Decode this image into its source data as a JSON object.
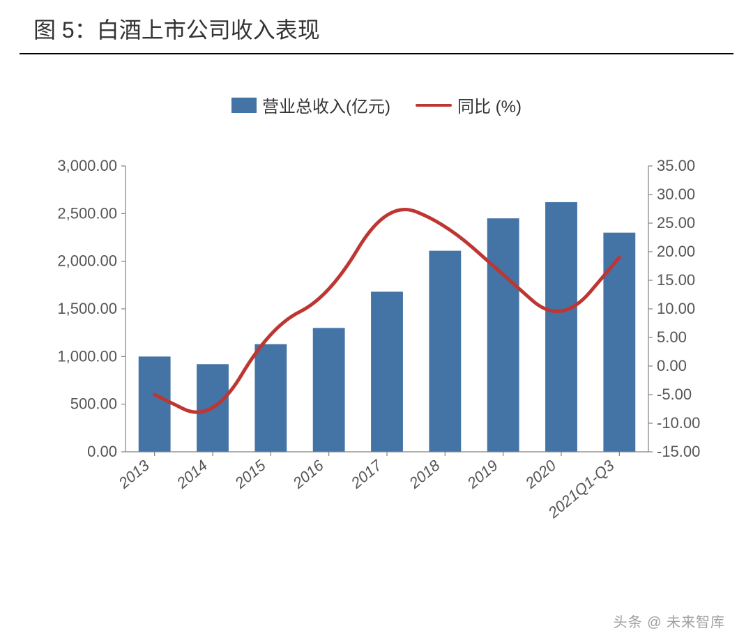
{
  "title": "图 5：白酒上市公司收入表现",
  "legend": {
    "bar_label": "营业总收入(亿元)",
    "line_label": "同比 (%)"
  },
  "chart": {
    "type": "bar+line",
    "categories": [
      "2013",
      "2014",
      "2015",
      "2016",
      "2017",
      "2018",
      "2019",
      "2020",
      "2021Q1-Q3"
    ],
    "bar_values": [
      1000,
      920,
      1130,
      1300,
      1680,
      2110,
      2450,
      2620,
      2300
    ],
    "line_values": [
      -5,
      -10,
      7,
      12,
      29,
      25,
      16,
      7,
      19
    ],
    "left_axis": {
      "min": 0,
      "max": 3000,
      "step": 500,
      "ticks": [
        "0.00",
        "500.00",
        "1,000.00",
        "1,500.00",
        "2,000.00",
        "2,500.00",
        "3,000.00"
      ]
    },
    "right_axis": {
      "min": -15,
      "max": 35,
      "step": 5,
      "ticks": [
        "-15.00",
        "-10.00",
        "-5.00",
        "0.00",
        "5.00",
        "10.00",
        "15.00",
        "20.00",
        "25.00",
        "30.00",
        "35.00"
      ]
    },
    "colors": {
      "bar": "#4473a6",
      "line": "#bd3632",
      "axis": "#808080",
      "tick_text": "#555555",
      "background": "#ffffff"
    },
    "style": {
      "bar_width_ratio": 0.55,
      "line_width": 5,
      "axis_width": 1.2,
      "tick_fontsize": 22,
      "xlabel_fontsize": 22,
      "xlabel_rotation_deg": -40,
      "legend_fontsize": 24,
      "title_fontsize": 32,
      "marker": "none"
    }
  },
  "watermark": "头条 @ 未来智库"
}
